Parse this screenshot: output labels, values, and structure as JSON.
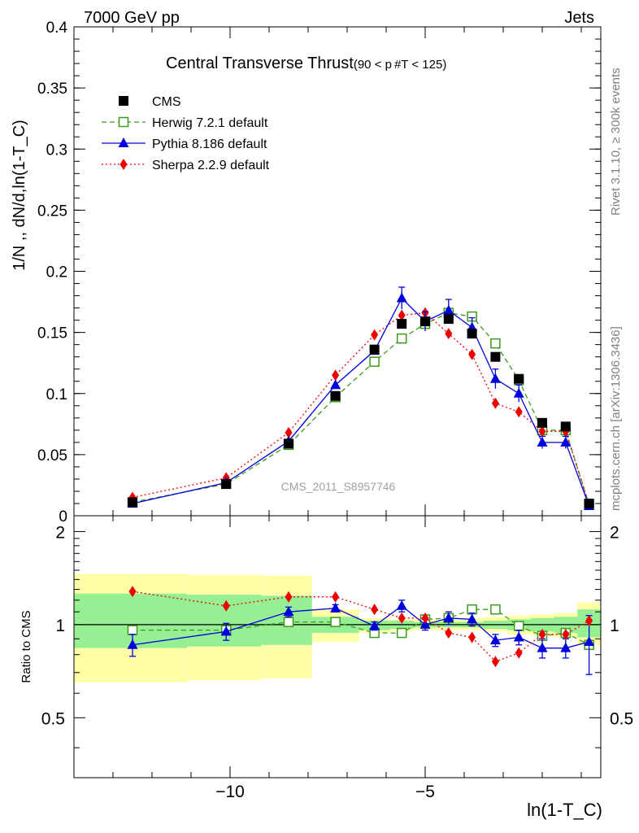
{
  "header": {
    "left": "7000 GeV pp",
    "right": "Jets"
  },
  "side_labels": {
    "rivet": "Rivet 3.1.10, ≥ 300k events",
    "mcplots": "mcplots.cern.ch [arXiv:1306.3436]"
  },
  "watermark": "CMS_2011_S8957746",
  "chart_data": {
    "type": "line",
    "title": "Central Transverse Thrust",
    "title_suffix": "(90 < p #T < 125)",
    "ylabel": "1/N ,, dN/d,ln(1-T_C)",
    "xlabel": "ln(1-T_C)",
    "ratio_ylabel": "Ratio to CMS",
    "xlim": [
      -14.0,
      -0.5
    ],
    "ylim": [
      0,
      0.4
    ],
    "ratio_ylim": [
      0.32,
      2.25
    ],
    "x_ticks": [
      -10,
      -5
    ],
    "x_tick_labels": [
      "−10",
      "−5"
    ],
    "y_ticks": [
      0,
      0.05,
      0.1,
      0.15,
      0.2,
      0.25,
      0.3,
      0.35,
      0.4
    ],
    "y_tick_labels": [
      "0",
      "0.05",
      "0.1",
      "0.15",
      "0.2",
      "0.25",
      "0.3",
      "0.35",
      "0.4"
    ],
    "ratio_ticks": [
      0.5,
      1,
      2
    ],
    "ratio_tick_labels": [
      "0.5",
      "1",
      "2"
    ],
    "legend_position": "top-left",
    "bins": [
      [
        -14.0,
        -11.1
      ],
      [
        -11.1,
        -9.2
      ],
      [
        -9.2,
        -7.9
      ],
      [
        -7.9,
        -6.7
      ],
      [
        -6.7,
        -5.9
      ],
      [
        -5.9,
        -5.3
      ],
      [
        -5.3,
        -4.7
      ],
      [
        -4.7,
        -4.1
      ],
      [
        -4.1,
        -3.5
      ],
      [
        -3.5,
        -2.9
      ],
      [
        -2.9,
        -2.3
      ],
      [
        -2.3,
        -1.7
      ],
      [
        -1.7,
        -1.1
      ],
      [
        -1.1,
        -0.5
      ]
    ],
    "band_yellow": [
      [
        0.65,
        1.46
      ],
      [
        0.66,
        1.45
      ],
      [
        0.67,
        1.44
      ],
      [
        0.88,
        1.12
      ],
      [
        0.94,
        1.05
      ],
      [
        0.95,
        1.04
      ],
      [
        0.96,
        1.04
      ],
      [
        0.96,
        1.04
      ],
      [
        0.96,
        1.05
      ],
      [
        0.95,
        1.06
      ],
      [
        0.93,
        1.07
      ],
      [
        0.92,
        1.08
      ],
      [
        0.91,
        1.09
      ],
      [
        0.86,
        1.18
      ]
    ],
    "band_green": [
      [
        0.84,
        1.26
      ],
      [
        0.85,
        1.25
      ],
      [
        0.86,
        1.24
      ],
      [
        0.94,
        1.06
      ],
      [
        0.96,
        1.03
      ],
      [
        0.97,
        1.03
      ],
      [
        0.98,
        1.02
      ],
      [
        0.98,
        1.02
      ],
      [
        0.98,
        1.02
      ],
      [
        0.97,
        1.03
      ],
      [
        0.96,
        1.04
      ],
      [
        0.95,
        1.05
      ],
      [
        0.94,
        1.06
      ],
      [
        0.91,
        1.12
      ]
    ],
    "series": [
      {
        "name": "CMS",
        "color": "#000000",
        "marker": "square",
        "line": "none",
        "x": [
          -12.5,
          -10.1,
          -8.5,
          -7.3,
          -6.3,
          -5.6,
          -5.0,
          -4.4,
          -3.8,
          -3.2,
          -2.6,
          -2.0,
          -1.4,
          -0.8
        ],
        "y": [
          0.011,
          0.026,
          0.059,
          0.098,
          0.136,
          0.157,
          0.159,
          0.161,
          0.149,
          0.13,
          0.112,
          0.076,
          0.073,
          0.01
        ]
      },
      {
        "name": "Herwig 7.2.1 default",
        "color": "#3a9a1c",
        "marker": "open-square",
        "line": "dashed",
        "x": [
          -12.5,
          -10.1,
          -8.5,
          -7.3,
          -6.3,
          -5.6,
          -5.0,
          -4.4,
          -3.8,
          -3.2,
          -2.6,
          -2.0,
          -1.4,
          -0.8
        ],
        "y": [
          0.011,
          0.026,
          0.058,
          0.097,
          0.126,
          0.145,
          0.157,
          0.166,
          0.163,
          0.141,
          0.111,
          0.07,
          0.07,
          0.009
        ],
        "ratio": [
          0.96,
          0.96,
          1.02,
          1.02,
          0.94,
          0.94,
          1.04,
          1.05,
          1.12,
          1.12,
          0.99,
          0.92,
          0.94,
          0.86
        ],
        "ratio_err": [
          0,
          0,
          0,
          0,
          0,
          0,
          0,
          0,
          0,
          0,
          0,
          0,
          0,
          0
        ]
      },
      {
        "name": "Pythia 8.186 default",
        "color": "#0000dd",
        "marker": "triangle",
        "line": "solid",
        "x": [
          -12.5,
          -10.1,
          -8.5,
          -7.3,
          -6.3,
          -5.6,
          -5.0,
          -4.4,
          -3.8,
          -3.2,
          -2.6,
          -2.0,
          -1.4,
          -0.8
        ],
        "y": [
          0.01,
          0.027,
          0.061,
          0.107,
          0.135,
          0.178,
          0.159,
          0.168,
          0.154,
          0.112,
          0.1,
          0.06,
          0.06,
          0.008
        ],
        "y_err": [
          0,
          0,
          0,
          0,
          0,
          0.009,
          0.008,
          0.009,
          0.008,
          0.008,
          0.007,
          0.005,
          0.005,
          0.001
        ],
        "ratio": [
          0.86,
          0.95,
          1.1,
          1.13,
          0.99,
          1.15,
          1.0,
          1.05,
          1.04,
          0.89,
          0.91,
          0.84,
          0.84,
          0.88
        ],
        "ratio_err": [
          0.07,
          0.06,
          0.04,
          0.03,
          0.03,
          0.05,
          0.04,
          0.05,
          0.05,
          0.04,
          0.05,
          0.06,
          0.06,
          0.19
        ]
      },
      {
        "name": "Sherpa 2.2.9 default",
        "color": "#ee0000",
        "marker": "diamond",
        "line": "dotted",
        "x": [
          -12.5,
          -10.1,
          -8.5,
          -7.3,
          -6.3,
          -5.6,
          -5.0,
          -4.4,
          -3.8,
          -3.2,
          -2.6,
          -2.0,
          -1.4,
          -0.8
        ],
        "y": [
          0.015,
          0.031,
          0.068,
          0.115,
          0.148,
          0.164,
          0.166,
          0.149,
          0.132,
          0.092,
          0.085,
          0.069,
          0.069,
          0.009
        ],
        "ratio": [
          1.28,
          1.15,
          1.23,
          1.23,
          1.12,
          1.05,
          1.05,
          0.94,
          0.91,
          0.76,
          0.81,
          0.93,
          0.93,
          1.03
        ],
        "ratio_err": [
          0,
          0,
          0,
          0,
          0,
          0,
          0,
          0,
          0,
          0,
          0,
          0,
          0,
          0
        ]
      }
    ]
  }
}
